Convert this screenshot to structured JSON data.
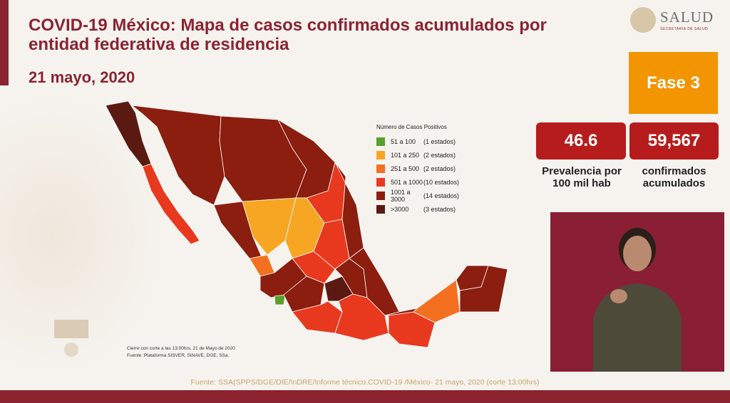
{
  "header": {
    "title": "COVID-19 México: Mapa de casos confirmados acumulados por entidad federativa de residencia",
    "date": "21 mayo, 2020"
  },
  "logo": {
    "name": "SALUD",
    "sub": "SECRETARÍA DE SALUD"
  },
  "phase": "Fase 3",
  "stats": [
    {
      "value": "46.6",
      "label": "Prevalencia por 100 mil hab"
    },
    {
      "value": "59,567",
      "label": "confirmados acumulados"
    }
  ],
  "legend": {
    "title": "Número de Casos Positivos",
    "items": [
      {
        "range": "51 a 100",
        "count": "(1 estados)",
        "color": "#5aa02c"
      },
      {
        "range": "101 a 250",
        "count": "(2 estados)",
        "color": "#f6a623"
      },
      {
        "range": "251 a 500",
        "count": "(2 estados)",
        "color": "#f37021"
      },
      {
        "range": "501 a 1000",
        "count": "(10 estados)",
        "color": "#e8391e"
      },
      {
        "range": "1001 a 3000",
        "count": "(14 estados)",
        "color": "#8b1e0f"
      },
      {
        "range": ">3000",
        "count": "(3 estados)",
        "color": "#5a1a12"
      }
    ]
  },
  "notes": {
    "cutoff": "Cierre con corte a las 13:00hrs, 21 de Mayo de 2020",
    "source": "Fuente: Plataforma SISVER, SINAVE, DGE, SSa."
  },
  "footer": "Fuente: SSA(SPPS/DGE/DIE/InDRE/Informe técnico.COVID-19 /México- 21 mayo, 2020 (corte 13:00hrs)",
  "colors": {
    "brand": "#8b2331",
    "phase": "#f29500",
    "stat_box": "#b71c1c"
  }
}
